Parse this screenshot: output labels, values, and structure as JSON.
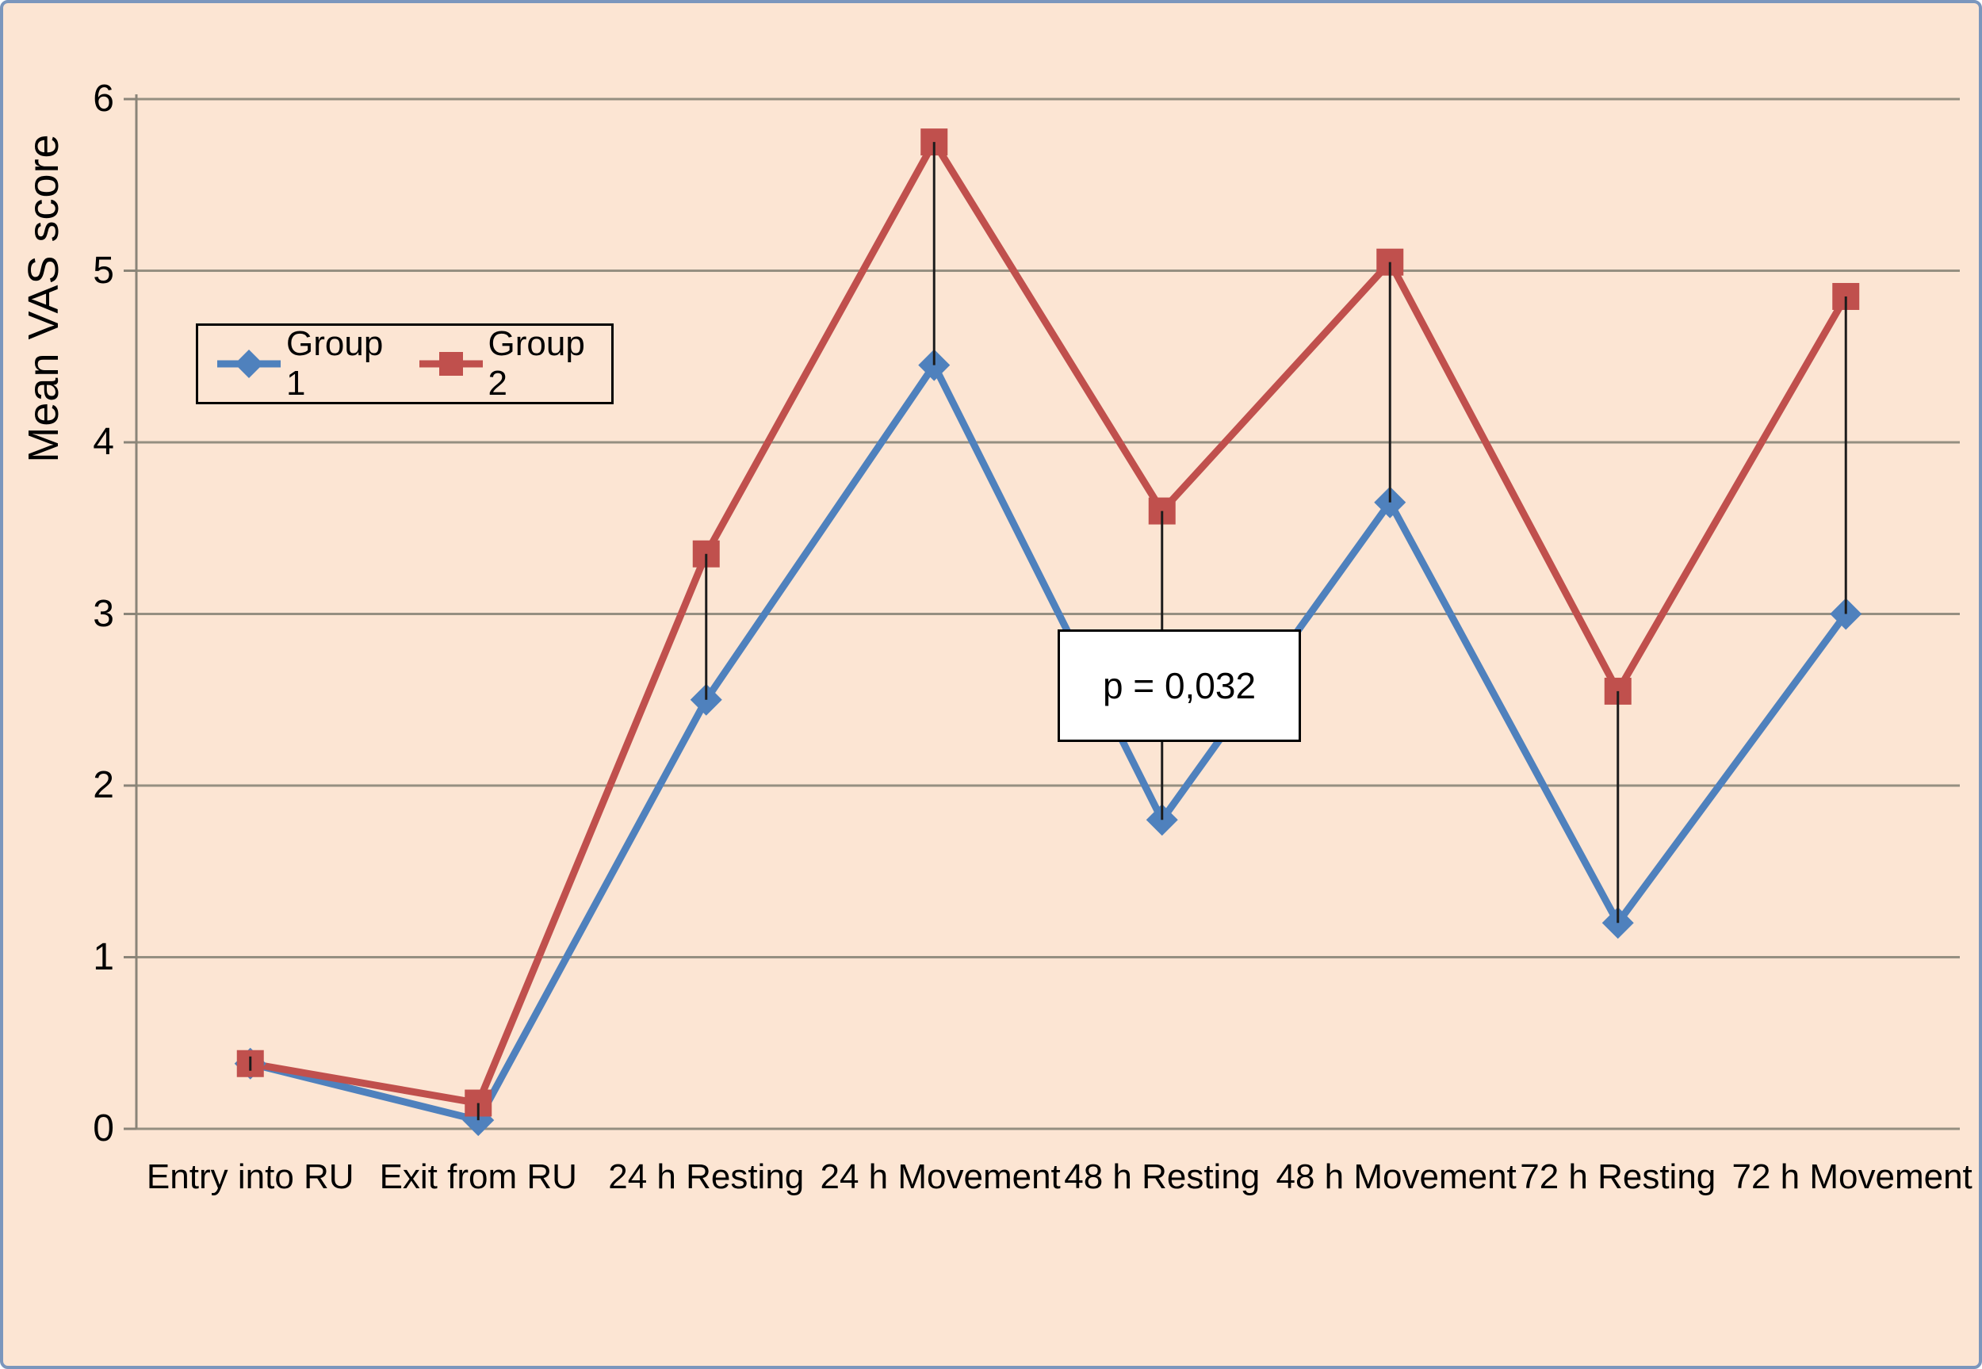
{
  "figure": {
    "background_color": "#fce5d3",
    "outer_border_color": "#7b96bd"
  },
  "colors": {
    "gridline": "#958f81",
    "axis": "#8a8478",
    "connector": "#1c1c1c",
    "annotation_background": "#ffffff",
    "annotation_border": "#000000",
    "legend_border": "#000000",
    "text": "#000000"
  },
  "chart_data": {
    "type": "line",
    "title": "",
    "xlabel": "",
    "ylabel": "Mean VAS score",
    "ylim": [
      0,
      6
    ],
    "yticks": [
      0,
      1,
      2,
      3,
      4,
      5,
      6
    ],
    "grid": true,
    "legend_position": "inside upper-left",
    "categories": [
      "Entry into RU",
      "Exit from RU",
      "24 h Resting",
      "24 h Movement",
      "48 h Resting",
      "48 h Movement",
      "72 h Resting",
      "72 h Movement"
    ],
    "series": [
      {
        "name": "Group 1",
        "color": "#4f81bd",
        "marker": "diamond",
        "values": [
          0.38,
          0.05,
          2.5,
          4.45,
          1.8,
          3.65,
          1.2,
          3.0
        ]
      },
      {
        "name": "Group 2",
        "color": "#c0504d",
        "marker": "square",
        "values": [
          0.38,
          0.15,
          3.35,
          5.75,
          3.6,
          5.05,
          2.55,
          4.85
        ]
      }
    ],
    "connectors": {
      "description": "vertical black line between Group 2 and Group 1 values at each category",
      "color": "#1c1c1c"
    },
    "annotation": {
      "text": "p = 0,032",
      "category": "48 h Resting"
    }
  }
}
